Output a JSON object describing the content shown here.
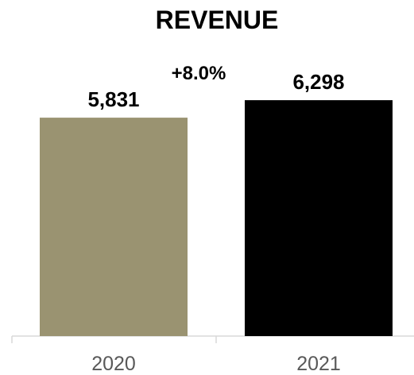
{
  "chart_data": {
    "type": "bar",
    "title": "REVENUE",
    "categories": [
      "2020",
      "2021"
    ],
    "values": [
      5831,
      6298
    ],
    "value_labels": [
      "5,831",
      "6,298"
    ],
    "colors": [
      "#9a9371",
      "#000000"
    ],
    "annotation": "+8.0%",
    "ylim": [
      0,
      7000
    ],
    "grid": false,
    "legend": "none",
    "xlabel": "",
    "ylabel": ""
  }
}
